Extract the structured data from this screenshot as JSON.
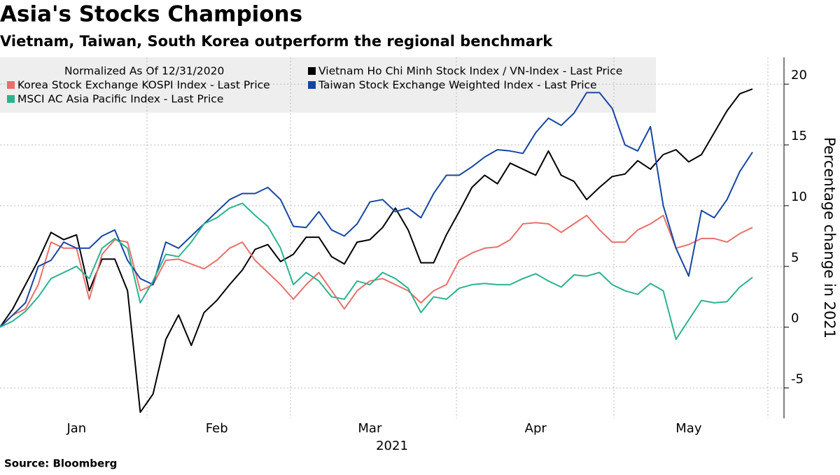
{
  "chart_data": {
    "type": "line",
    "title": "Asia's Stocks Champions",
    "subtitle": "Vietnam, Taiwan, South Korea outperform the regional benchmark",
    "legend_title": "Normalized As Of 12/31/2020",
    "y_label": "Percentage change in 2021",
    "x_label": "2021",
    "source": "Source: Bloomberg",
    "categories": [
      null,
      null,
      null,
      null,
      null,
      null,
      "Jan",
      null,
      null,
      null,
      null,
      null,
      null,
      null,
      null,
      null,
      null,
      "Feb",
      null,
      null,
      null,
      null,
      null,
      null,
      null,
      null,
      null,
      null,
      null,
      "Mar",
      null,
      null,
      null,
      null,
      null,
      null,
      null,
      null,
      null,
      null,
      null,
      null,
      "Apr",
      null,
      null,
      null,
      null,
      null,
      null,
      null,
      null,
      null,
      null,
      null,
      "May",
      null,
      null,
      null,
      null,
      null
    ],
    "ylim": [
      -7.5,
      22.2
    ],
    "yticks": [
      -5,
      0,
      5,
      10,
      15,
      20
    ],
    "grid": true,
    "series": [
      {
        "name": "Vietnam Ho Chi Minh Stock Index / VN-Index - Last Price",
        "color": "#000000",
        "values": [
          0,
          1.5,
          3.5,
          5.5,
          7.8,
          7.2,
          7.6,
          3,
          5.6,
          5.6,
          3,
          -7,
          -5.5,
          -1,
          1,
          -1.5,
          1.2,
          2.2,
          3.5,
          4.7,
          6.4,
          6.8,
          5.4,
          6,
          7.4,
          7.4,
          5.8,
          5.2,
          7,
          7.2,
          8.2,
          9.8,
          8,
          5.3,
          5.3,
          7.6,
          9.5,
          11.5,
          12.5,
          11.8,
          13.5,
          13,
          12.5,
          14.5,
          12.5,
          12,
          10.5,
          11.5,
          12.4,
          12.6,
          13.7,
          13,
          14.2,
          14.6,
          13.6,
          14.2,
          16,
          17.8,
          19.2,
          19.6
        ]
      },
      {
        "name": "Korea Stock Exchange KOSPI Index - Last Price",
        "color": "#e8706a",
        "values": [
          0,
          1,
          1.5,
          3.5,
          7,
          6.5,
          6.5,
          2.3,
          6,
          7.2,
          7,
          3,
          3.5,
          5.5,
          5.6,
          5.2,
          4.8,
          5.5,
          6.5,
          7,
          5.5,
          4.5,
          3.5,
          2.3,
          3.5,
          4.5,
          3,
          1.5,
          3,
          3.8,
          4,
          3.5,
          3,
          2,
          3,
          3.5,
          5.5,
          6.1,
          6.5,
          6.6,
          7.2,
          8.5,
          8.6,
          8.5,
          7.8,
          8.5,
          9.2,
          8,
          7,
          7,
          8,
          8.5,
          9.2,
          6.5,
          6.8,
          7.3,
          7.3,
          7,
          7.7,
          8.2
        ]
      },
      {
        "name": "Taiwan Stock Exchange Weighted Index - Last Price",
        "color": "#1746a2",
        "values": [
          0,
          1,
          2,
          5,
          5.5,
          7,
          6.5,
          6.5,
          7.5,
          8,
          5.5,
          4,
          3.5,
          7,
          6.5,
          7.5,
          8.5,
          9.5,
          10.5,
          11,
          11,
          11.5,
          10.5,
          8.3,
          8.2,
          9.5,
          8,
          7.5,
          8.5,
          10.3,
          10.5,
          9.5,
          9.8,
          9,
          11,
          12.5,
          12.5,
          13.2,
          14,
          14.6,
          14.5,
          14.3,
          16,
          17.2,
          16.6,
          17.6,
          19.3,
          19.3,
          18,
          15,
          14.5,
          16.5,
          10,
          6.5,
          4.2,
          9.6,
          9,
          10.5,
          12.8,
          14.4
        ]
      },
      {
        "name": "MSCI AC Asia Pacific Index - Last Price",
        "color": "#2bb38f",
        "values": [
          0,
          0.5,
          1.3,
          2.5,
          4,
          4.5,
          5,
          4,
          6.5,
          7.3,
          6.5,
          2,
          3.8,
          6,
          5.8,
          7,
          8.5,
          9,
          9.8,
          10.2,
          9.2,
          8.3,
          6.5,
          3.5,
          4.5,
          3.8,
          2.5,
          2.3,
          3.8,
          3.5,
          4.5,
          4,
          3.2,
          1.2,
          2.5,
          2.3,
          3.2,
          3.5,
          3.6,
          3.5,
          3.5,
          4,
          4.4,
          3.8,
          3.3,
          4.3,
          4.2,
          4.5,
          3.5,
          3,
          2.7,
          3.6,
          3,
          -1,
          0.6,
          2.2,
          2,
          2.1,
          3.3,
          4.1
        ]
      }
    ]
  }
}
